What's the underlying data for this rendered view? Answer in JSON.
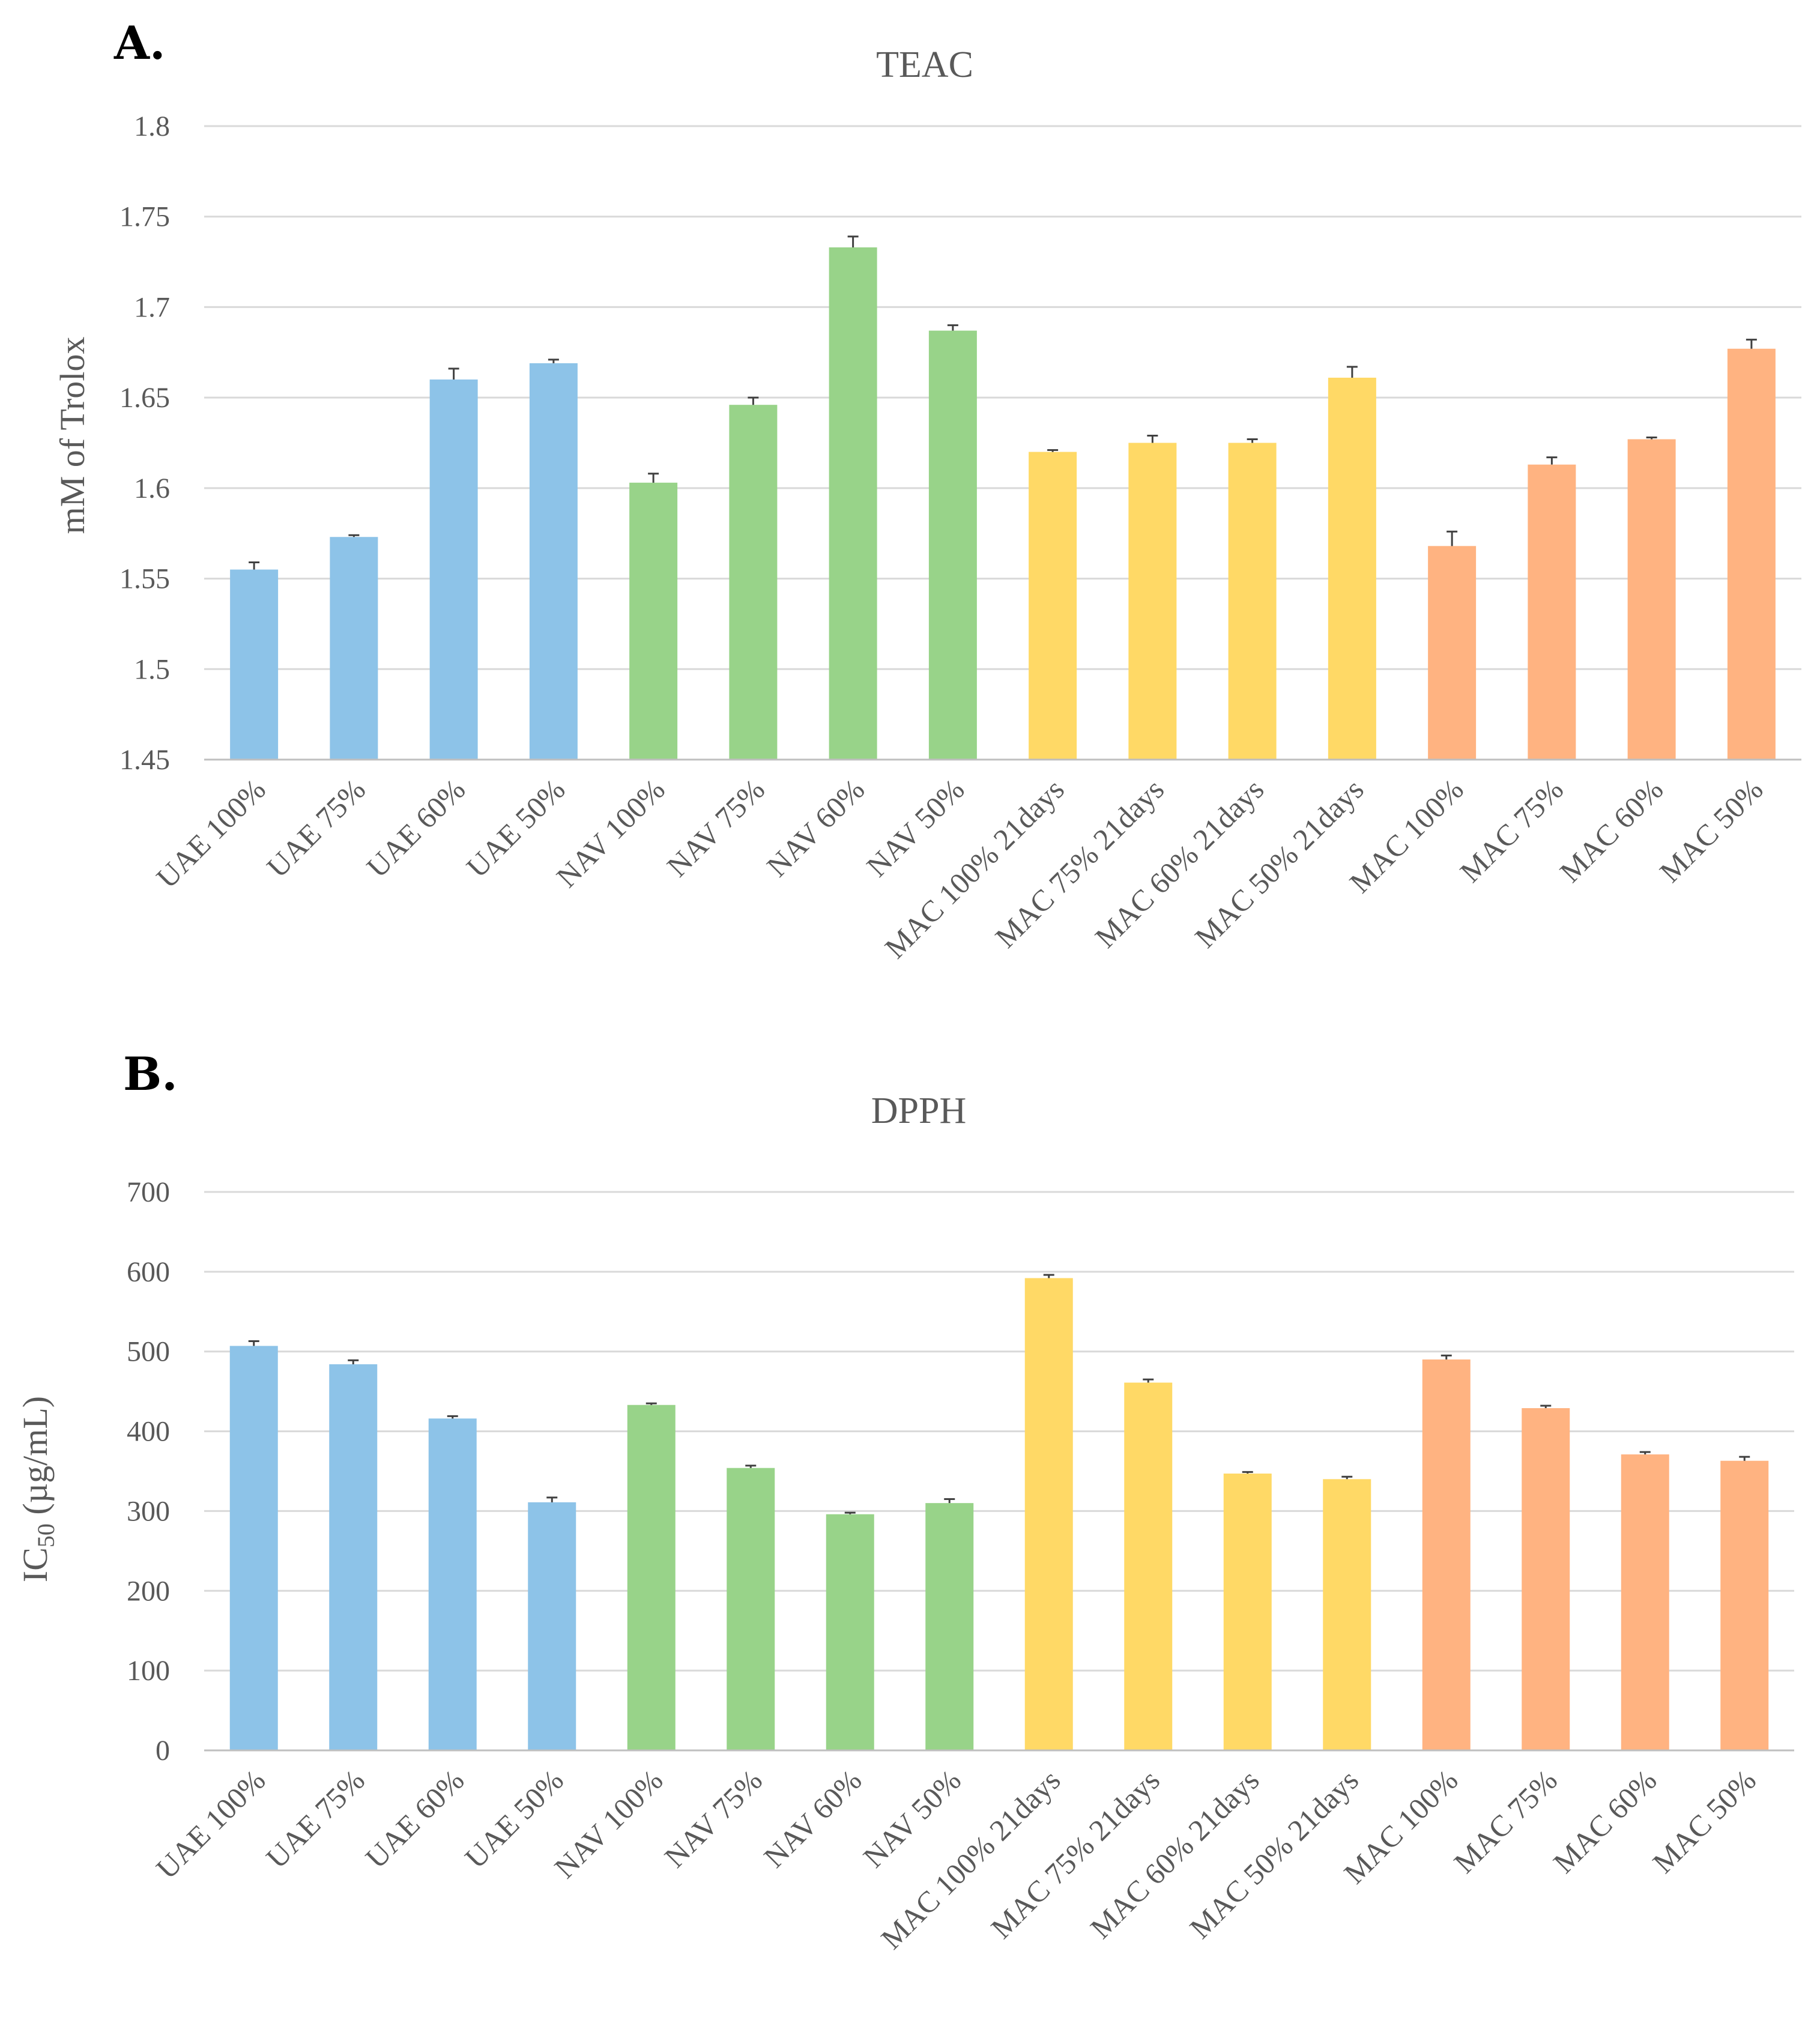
{
  "chart_data": [
    {
      "type": "bar",
      "panel_label": "A.",
      "title": "TEAC",
      "xlabel": "",
      "ylabel": "mM of Trolox",
      "ylim": [
        1.45,
        1.8
      ],
      "yticks": [
        "1.45",
        "1.5",
        "1.55",
        "1.6",
        "1.65",
        "1.7",
        "1.75",
        "1.8"
      ],
      "grid": true,
      "categories": [
        "UAE 100%",
        "UAE 75%",
        "UAE 60%",
        "UAE 50%",
        "NAV 100%",
        "NAV 75%",
        "NAV 60%",
        "NAV 50%",
        "MAC 100% 21days",
        "MAC 75% 21days",
        "MAC 60% 21days",
        "MAC 50% 21days",
        "MAC 100%",
        "MAC 75%",
        "MAC 60%",
        "MAC 50%"
      ],
      "values": [
        1.555,
        1.573,
        1.66,
        1.669,
        1.603,
        1.646,
        1.733,
        1.687,
        1.62,
        1.625,
        1.625,
        1.661,
        1.568,
        1.613,
        1.627,
        1.677
      ],
      "errors": [
        0.004,
        0.001,
        0.006,
        0.002,
        0.005,
        0.004,
        0.006,
        0.003,
        0.001,
        0.004,
        0.002,
        0.006,
        0.008,
        0.004,
        0.001,
        0.005
      ],
      "colors": [
        "#8dc3e8",
        "#8dc3e8",
        "#8dc3e8",
        "#8dc3e8",
        "#98d389",
        "#98d389",
        "#98d389",
        "#98d389",
        "#ffd966",
        "#ffd966",
        "#ffd966",
        "#ffd966",
        "#ffb381",
        "#ffb381",
        "#ffb381",
        "#ffb381"
      ]
    },
    {
      "type": "bar",
      "panel_label": "B.",
      "title": "DPPH",
      "xlabel": "",
      "ylabel": "IC",
      "ylabel_sub": "50",
      "ylabel_tail": " (µg/mL)",
      "ylim": [
        0,
        700
      ],
      "yticks": [
        "0",
        "100",
        "200",
        "300",
        "400",
        "500",
        "600",
        "700"
      ],
      "grid": true,
      "categories": [
        "UAE 100%",
        "UAE 75%",
        "UAE 60%",
        "UAE 50%",
        "NAV 100%",
        "NAV 75%",
        "NAV 60%",
        "NAV 50%",
        "MAC 100% 21days",
        "MAC 75% 21days",
        "MAC 60% 21days",
        "MAC 50% 21days",
        "MAC 100%",
        "MAC 75%",
        "MAC 60%",
        "MAC 50%"
      ],
      "values": [
        507,
        484,
        416,
        311,
        433,
        354,
        296,
        310,
        592,
        461,
        347,
        340,
        490,
        429,
        371,
        363
      ],
      "errors": [
        6,
        5,
        3,
        6,
        2,
        3,
        2,
        5,
        4,
        4,
        2,
        3,
        5,
        3,
        3,
        5
      ],
      "colors": [
        "#8dc3e8",
        "#8dc3e8",
        "#8dc3e8",
        "#8dc3e8",
        "#98d389",
        "#98d389",
        "#98d389",
        "#98d389",
        "#ffd966",
        "#ffd966",
        "#ffd966",
        "#ffd966",
        "#ffb381",
        "#ffb381",
        "#ffb381",
        "#ffb381"
      ]
    }
  ]
}
